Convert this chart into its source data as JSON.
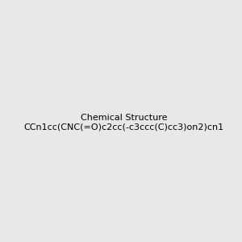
{
  "smiles": "CCn1cc(CNC(=O)c2cc(-c3ccc(C)cc3)on2)cn1",
  "image_size": 300,
  "background_color": "#e8e8e8"
}
